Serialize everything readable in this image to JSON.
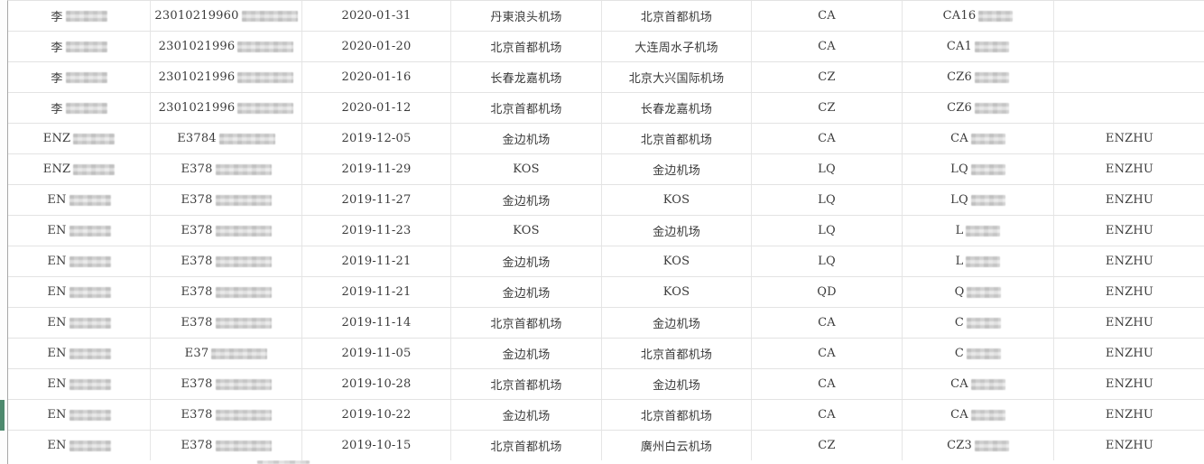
{
  "table": {
    "columns": [
      "passenger-name",
      "id-number",
      "flight-date",
      "departure-airport",
      "arrival-airport",
      "airline-code",
      "flight-number",
      "holder-name"
    ],
    "rows": [
      {
        "name": "李",
        "name_redacted": true,
        "id": "23010219960",
        "id_redacted": true,
        "date": "2020-01-31",
        "departure": "丹東浪头机场",
        "arrival": "北京首都机场",
        "airline": "CA",
        "flight": "CA16",
        "flight_redacted": true,
        "holder": "",
        "marked": false
      },
      {
        "name": "李",
        "name_redacted": true,
        "id": "2301021996",
        "id_redacted": true,
        "date": "2020-01-20",
        "departure": "北京首都机场",
        "arrival": "大连周水子机场",
        "airline": "CA",
        "flight": "CA1",
        "flight_redacted": true,
        "holder": "",
        "marked": false
      },
      {
        "name": "李",
        "name_redacted": true,
        "id": "2301021996",
        "id_redacted": true,
        "date": "2020-01-16",
        "departure": "长春龙嘉机场",
        "arrival": "北京大兴国际机场",
        "airline": "CZ",
        "flight": "CZ6",
        "flight_redacted": true,
        "holder": "",
        "marked": false
      },
      {
        "name": "李",
        "name_redacted": true,
        "id": "2301021996",
        "id_redacted": true,
        "date": "2020-01-12",
        "departure": "北京首都机场",
        "arrival": "长春龙嘉机场",
        "airline": "CZ",
        "flight": "CZ6",
        "flight_redacted": true,
        "holder": "",
        "marked": false
      },
      {
        "name": "ENZ",
        "name_redacted": true,
        "id": "E3784",
        "id_redacted": true,
        "date": "2019-12-05",
        "departure": "金边机场",
        "arrival": "北京首都机场",
        "airline": "CA",
        "flight": "CA",
        "flight_redacted": true,
        "holder": "ENZHU",
        "marked": false
      },
      {
        "name": "ENZ",
        "name_redacted": true,
        "id": "E378",
        "id_redacted": true,
        "date": "2019-11-29",
        "departure": "KOS",
        "arrival": "金边机场",
        "airline": "LQ",
        "flight": "LQ",
        "flight_redacted": true,
        "holder": "ENZHU",
        "marked": false
      },
      {
        "name": "EN",
        "name_redacted": true,
        "id": "E378",
        "id_redacted": true,
        "date": "2019-11-27",
        "departure": "金边机场",
        "arrival": "KOS",
        "airline": "LQ",
        "flight": "LQ",
        "flight_redacted": true,
        "holder": "ENZHU",
        "marked": false
      },
      {
        "name": "EN",
        "name_redacted": true,
        "id": "E378",
        "id_redacted": true,
        "date": "2019-11-23",
        "departure": "KOS",
        "arrival": "金边机场",
        "airline": "LQ",
        "flight": "L",
        "flight_redacted": true,
        "holder": "ENZHU",
        "marked": false
      },
      {
        "name": "EN",
        "name_redacted": true,
        "id": "E378",
        "id_redacted": true,
        "date": "2019-11-21",
        "departure": "金边机场",
        "arrival": "KOS",
        "airline": "LQ",
        "flight": "L",
        "flight_redacted": true,
        "holder": "ENZHU",
        "marked": false
      },
      {
        "name": "EN",
        "name_redacted": true,
        "id": "E378",
        "id_redacted": true,
        "date": "2019-11-21",
        "departure": "金边机场",
        "arrival": "KOS",
        "airline": "QD",
        "flight": "Q",
        "flight_redacted": true,
        "holder": "ENZHU",
        "marked": false
      },
      {
        "name": "EN",
        "name_redacted": true,
        "id": "E378",
        "id_redacted": true,
        "date": "2019-11-14",
        "departure": "北京首都机场",
        "arrival": "金边机场",
        "airline": "CA",
        "flight": "C",
        "flight_redacted": true,
        "holder": "ENZHU",
        "marked": false
      },
      {
        "name": "EN",
        "name_redacted": true,
        "id": "E37",
        "id_redacted": true,
        "date": "2019-11-05",
        "departure": "金边机场",
        "arrival": "北京首都机场",
        "airline": "CA",
        "flight": "C",
        "flight_redacted": true,
        "holder": "ENZHU",
        "marked": false
      },
      {
        "name": "EN",
        "name_redacted": true,
        "id": "E378",
        "id_redacted": true,
        "date": "2019-10-28",
        "departure": "北京首都机场",
        "arrival": "金边机场",
        "airline": "CA",
        "flight": "CA",
        "flight_redacted": true,
        "holder": "ENZHU",
        "marked": false
      },
      {
        "name": "EN",
        "name_redacted": true,
        "id": "E378",
        "id_redacted": true,
        "date": "2019-10-22",
        "departure": "金边机场",
        "arrival": "北京首都机场",
        "airline": "CA",
        "flight": "CA",
        "flight_redacted": true,
        "holder": "ENZHU",
        "marked": true
      },
      {
        "name": "EN",
        "name_redacted": true,
        "id": "E378",
        "id_redacted": true,
        "date": "2019-10-15",
        "departure": "北京首都机场",
        "arrival": "廣州白云机场",
        "airline": "CZ",
        "flight": "CZ3",
        "flight_redacted": true,
        "holder": "ENZHU",
        "marked": false
      }
    ]
  },
  "colors": {
    "marker_green": "#4e8a6e"
  }
}
